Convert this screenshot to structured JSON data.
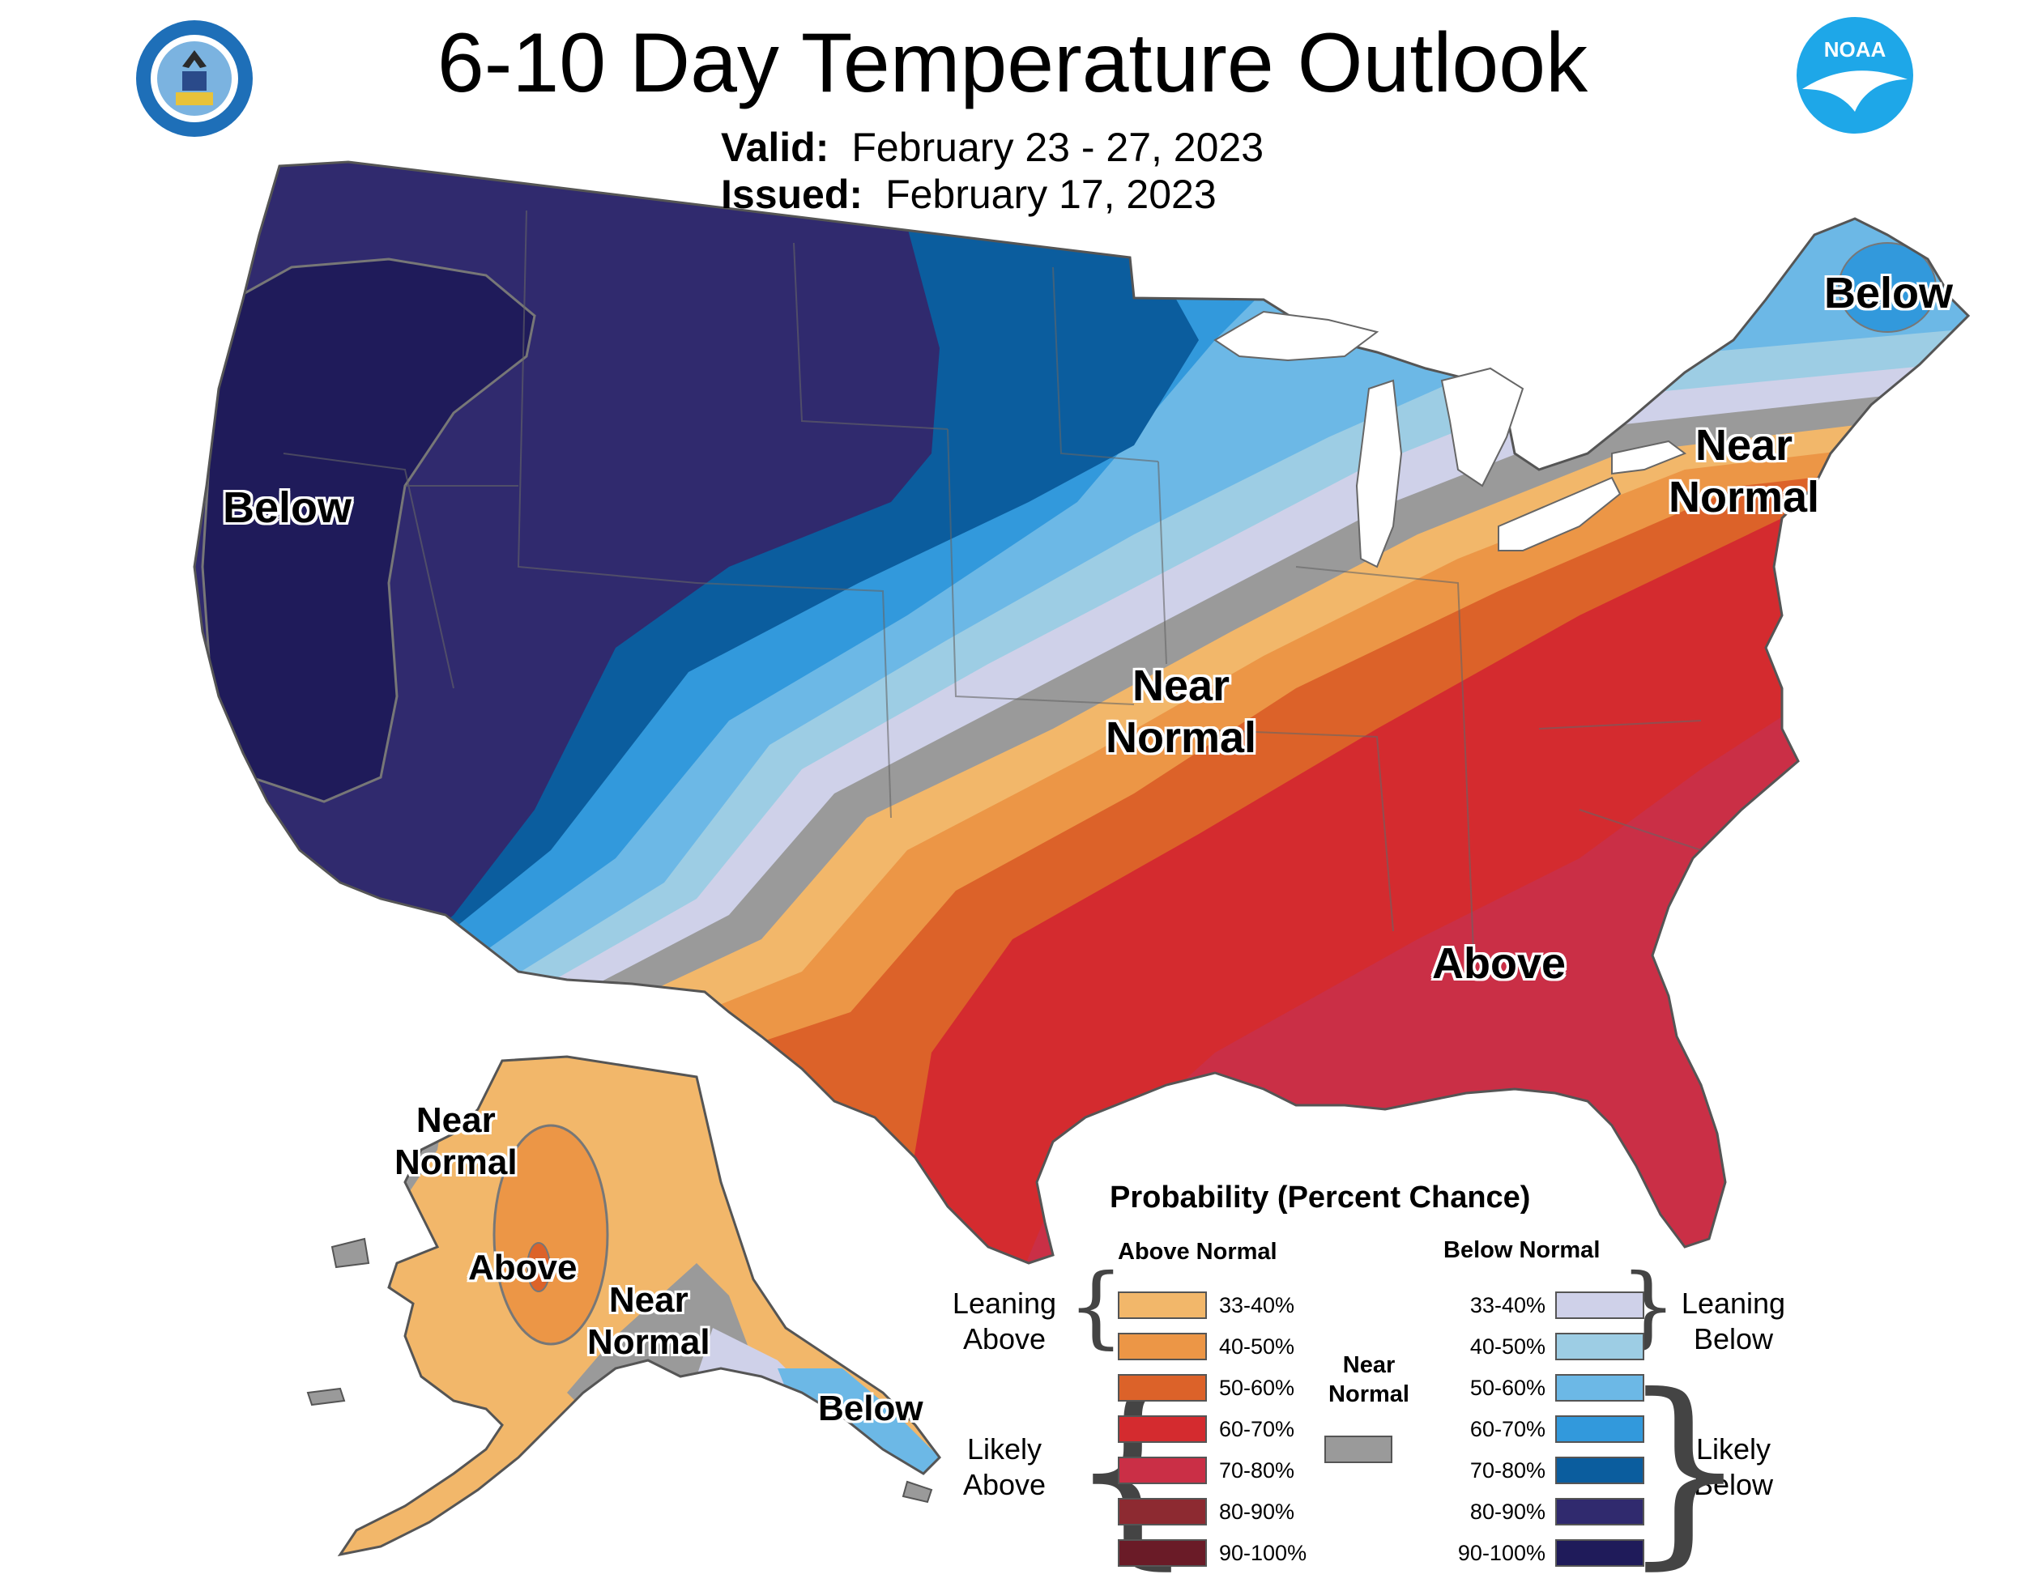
{
  "title": "6-10 Day Temperature Outlook",
  "valid": {
    "label": "Valid:",
    "value": "February 23 - 27, 2023"
  },
  "issued": {
    "label": "Issued:",
    "value": "February 17, 2023"
  },
  "logos": {
    "left": "department-of-commerce-seal",
    "right": "noaa-logo",
    "noaa_text": "NOAA"
  },
  "regions": {
    "west_below": "Below",
    "central_near": [
      "Near",
      "Normal"
    ],
    "southeast_above": "Above",
    "northeast_near": [
      "Near",
      "Normal"
    ],
    "maine_below": "Below",
    "ak_nw_near": [
      "Near",
      "Normal"
    ],
    "ak_above": "Above",
    "ak_se_near": [
      "Near",
      "Normal"
    ],
    "ak_panhandle_below": "Below"
  },
  "legend": {
    "title": "Probability (Percent Chance)",
    "above_header": "Above Normal",
    "below_header": "Below Normal",
    "near_header": [
      "Near",
      "Normal"
    ],
    "leaning_above": [
      "Leaning",
      "Above"
    ],
    "likely_above": [
      "Likely",
      "Above"
    ],
    "leaning_below": [
      "Leaning",
      "Below"
    ],
    "likely_below": [
      "Likely",
      "Below"
    ],
    "above": [
      {
        "range": "33-40%",
        "color": "#f2b76a"
      },
      {
        "range": "40-50%",
        "color": "#ec9646"
      },
      {
        "range": "50-60%",
        "color": "#dc6229"
      },
      {
        "range": "60-70%",
        "color": "#d42b2f"
      },
      {
        "range": "70-80%",
        "color": "#ca2f46"
      },
      {
        "range": "80-90%",
        "color": "#8d2a31"
      },
      {
        "range": "90-100%",
        "color": "#6a1b27"
      }
    ],
    "near_color": "#9a9a9a",
    "below": [
      {
        "range": "33-40%",
        "color": "#cfd1e9"
      },
      {
        "range": "40-50%",
        "color": "#9dcde4"
      },
      {
        "range": "50-60%",
        "color": "#6cb8e6"
      },
      {
        "range": "60-70%",
        "color": "#3299dc"
      },
      {
        "range": "70-80%",
        "color": "#0b5d9e"
      },
      {
        "range": "80-90%",
        "color": "#302a6e"
      },
      {
        "range": "90-100%",
        "color": "#1f1b5a"
      }
    ]
  }
}
